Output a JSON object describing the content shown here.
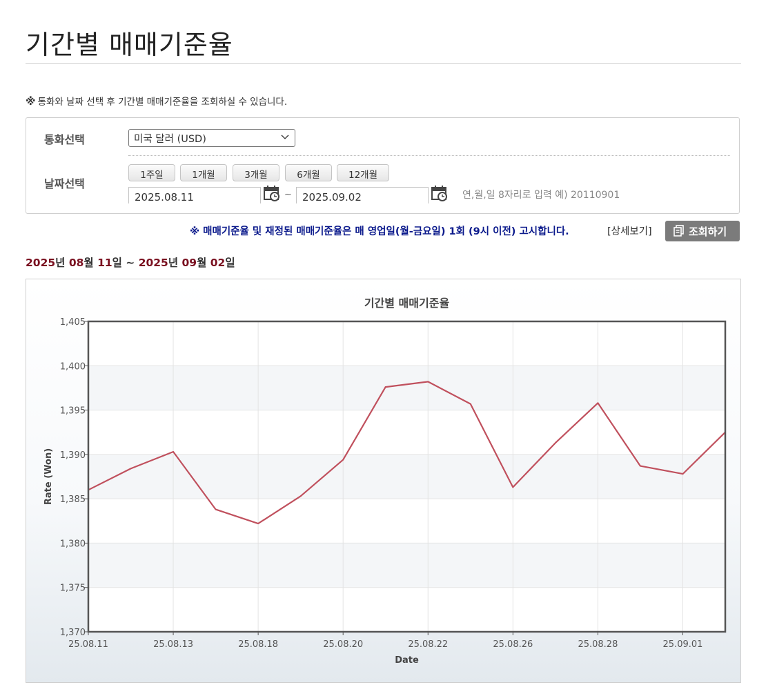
{
  "page": {
    "title": "기간별 매매기준율",
    "notice_mark": "※",
    "notice": "통화와 날짜 선택 후 기간별 매매기준율을 조회하실 수 있습니다."
  },
  "filters": {
    "currency_label": "통화선택",
    "currency_value": "미국 달러 (USD)",
    "date_label": "날짜선택",
    "period_buttons": [
      "1주일",
      "1개월",
      "3개월",
      "6개월",
      "12개월"
    ],
    "start_date": "2025.08.11",
    "end_date": "2025.09.02",
    "separator": "~",
    "hint": "연,월,일 8자리로 입력 예) 20110901"
  },
  "info": {
    "blue_note": "※ 매매기준율 및 재정된 매매기준율은 매 영업일(월-금요일) 1회 (9시 이전) 고시합니다.",
    "detail_link": "[상세보기]",
    "query_button": "조회하기"
  },
  "period_label": {
    "y1": "2025",
    "u1": "년 ",
    "m1": "08",
    "u2": "월 ",
    "d1": "11",
    "u3": "일 ~ ",
    "y2": "2025",
    "u4": "년 ",
    "m2": "09",
    "u5": "월 ",
    "d2": "02",
    "u6": "일"
  },
  "chart_data": {
    "type": "line",
    "title": "기간별 매매기준율",
    "xlabel": "Date",
    "ylabel": "Rate (Won)",
    "ylim": [
      1370,
      1405
    ],
    "y_ticks": [
      "1,370",
      "1,375",
      "1,380",
      "1,385",
      "1,390",
      "1,395",
      "1,400",
      "1,405"
    ],
    "x_tick_labels": [
      "25.08.11",
      "25.08.13",
      "25.08.18",
      "25.08.20",
      "25.08.22",
      "25.08.26",
      "25.08.28",
      "25.09.01"
    ],
    "x": [
      "25.08.11",
      "25.08.12",
      "25.08.13",
      "25.08.14",
      "25.08.18",
      "25.08.19",
      "25.08.20",
      "25.08.21",
      "25.08.22",
      "25.08.25",
      "25.08.26",
      "25.08.27",
      "25.08.28",
      "25.08.29",
      "25.09.01",
      "25.09.02"
    ],
    "series": [
      {
        "values": [
          1386.0,
          1388.4,
          1390.3,
          1383.8,
          1382.2,
          1385.3,
          1389.4,
          1397.6,
          1398.2,
          1395.7,
          1386.3,
          1391.3,
          1395.8,
          1388.7,
          1387.8,
          1392.5
        ],
        "color": "#c0505d"
      }
    ],
    "grid": true,
    "legend": "none"
  }
}
